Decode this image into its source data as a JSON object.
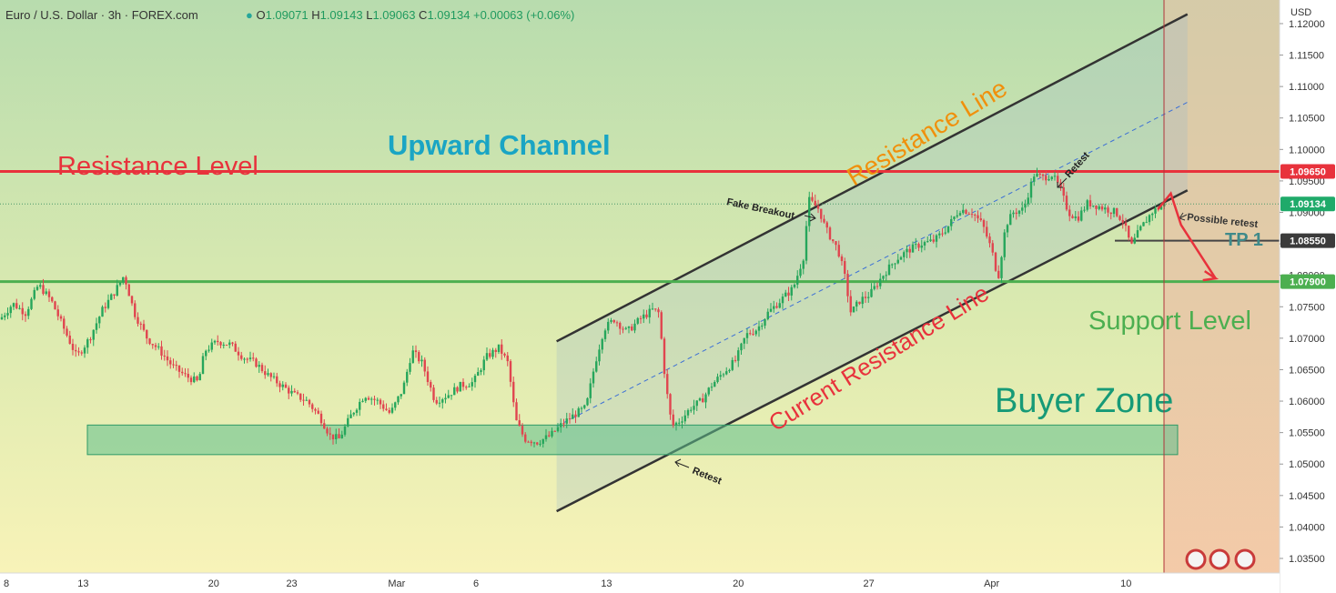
{
  "header": {
    "symbol": "Euro / U.S. Dollar · 3h · FOREX.com",
    "ohlc": [
      {
        "label": "O",
        "value": "1.09071"
      },
      {
        "label": "H",
        "value": "1.09143"
      },
      {
        "label": "L",
        "value": "1.09063"
      },
      {
        "label": "C",
        "value": "1.09134"
      }
    ],
    "change": "+0.00063 (+0.06%)"
  },
  "currency": "USD",
  "colors": {
    "resistance": "#e8323c",
    "support": "#4caf50",
    "title_teal": "#1aa5c4",
    "buyer_zone_text": "#169a77",
    "orange": "#f0900c",
    "last_price": "#1faa6a",
    "dark_label": "#3b3b3b",
    "bull": "#26a65b",
    "bear": "#e0454f"
  },
  "annotations": {
    "upward_channel": "Upward Channel",
    "resistance_level": "Resistance Level",
    "resistance_line": "Resistance Line",
    "current_resistance_line": "Current Resistance Line",
    "buyer_zone": "Buyer Zone",
    "support_level": "Support Level",
    "tp1": "TP 1",
    "fake_breakout": "Fake Breakout",
    "retest_top": "Retest",
    "retest_bottom": "Retest",
    "possible_retest": "Possible retest"
  },
  "chart_data": {
    "type": "candlestick",
    "symbol": "EURUSD",
    "timeframe": "3h",
    "y_axis": {
      "range": [
        1.0325,
        1.1275
      ],
      "ticks": [
        "1.03500",
        "1.04000",
        "1.04500",
        "1.05000",
        "1.05500",
        "1.06000",
        "1.06500",
        "1.07000",
        "1.07500",
        "1.08000",
        "1.08500",
        "1.09000",
        "1.09500",
        "1.10000",
        "1.10500",
        "1.11000",
        "1.11500",
        "1.12000"
      ]
    },
    "x_axis": {
      "ticks": [
        {
          "label": "8",
          "frac": 0.005
        },
        {
          "label": "13",
          "frac": 0.065
        },
        {
          "label": "20",
          "frac": 0.167
        },
        {
          "label": "23",
          "frac": 0.228
        },
        {
          "label": "Mar",
          "frac": 0.31
        },
        {
          "label": "6",
          "frac": 0.372
        },
        {
          "label": "13",
          "frac": 0.474
        },
        {
          "label": "20",
          "frac": 0.577
        },
        {
          "label": "27",
          "frac": 0.679
        },
        {
          "label": "Apr",
          "frac": 0.775
        },
        {
          "label": "10",
          "frac": 0.88
        }
      ]
    },
    "price_labels": [
      {
        "value": "1.09650",
        "kind": "resistance"
      },
      {
        "value": "1.09134",
        "kind": "last"
      },
      {
        "value": "1.08550",
        "kind": "tp"
      },
      {
        "value": "1.07900",
        "kind": "support"
      }
    ],
    "levels": {
      "resistance": 1.0965,
      "last_price": 1.09134,
      "tp1": 1.0855,
      "support": 1.079
    },
    "buyer_zone": {
      "low": 1.0515,
      "high": 1.0562
    },
    "channel": {
      "x_start": 0.435,
      "x_end": 0.928,
      "upper": [
        1.0695,
        1.1215
      ],
      "lower": [
        1.0425,
        1.0935
      ],
      "mid": [
        1.056,
        1.1075
      ]
    },
    "series": [
      {
        "name": "price",
        "points": [
          [
            0.0,
            1.073
          ],
          [
            0.01,
            1.0755
          ],
          [
            0.02,
            1.074
          ],
          [
            0.03,
            1.0785
          ],
          [
            0.04,
            1.076
          ],
          [
            0.05,
            1.0715
          ],
          [
            0.06,
            1.067
          ],
          [
            0.07,
            1.07
          ],
          [
            0.08,
            1.0745
          ],
          [
            0.09,
            1.0775
          ],
          [
            0.097,
            1.08
          ],
          [
            0.105,
            1.074
          ],
          [
            0.115,
            1.07
          ],
          [
            0.125,
            1.068
          ],
          [
            0.135,
            1.0655
          ],
          [
            0.145,
            1.064
          ],
          [
            0.155,
            1.063
          ],
          [
            0.16,
            1.068
          ],
          [
            0.17,
            1.0695
          ],
          [
            0.18,
            1.069
          ],
          [
            0.19,
            1.067
          ],
          [
            0.2,
            1.066
          ],
          [
            0.21,
            1.064
          ],
          [
            0.22,
            1.0625
          ],
          [
            0.23,
            1.061
          ],
          [
            0.24,
            1.06
          ],
          [
            0.25,
            1.0575
          ],
          [
            0.258,
            1.0545
          ],
          [
            0.265,
            1.054
          ],
          [
            0.275,
            1.058
          ],
          [
            0.285,
            1.061
          ],
          [
            0.295,
            1.06
          ],
          [
            0.305,
            1.058
          ],
          [
            0.315,
            1.062
          ],
          [
            0.322,
            1.068
          ],
          [
            0.33,
            1.066
          ],
          [
            0.34,
            1.06
          ],
          [
            0.35,
            1.061
          ],
          [
            0.36,
            1.0625
          ],
          [
            0.37,
            1.063
          ],
          [
            0.38,
            1.067
          ],
          [
            0.39,
            1.0685
          ],
          [
            0.397,
            1.066
          ],
          [
            0.403,
            1.057
          ],
          [
            0.41,
            1.054
          ],
          [
            0.42,
            1.0535
          ],
          [
            0.43,
            1.0545
          ],
          [
            0.44,
            1.0565
          ],
          [
            0.45,
            1.058
          ],
          [
            0.458,
            1.059
          ],
          [
            0.465,
            1.066
          ],
          [
            0.472,
            1.0715
          ],
          [
            0.48,
            1.073
          ],
          [
            0.49,
            1.071
          ],
          [
            0.5,
            1.073
          ],
          [
            0.51,
            1.0745
          ],
          [
            0.515,
            1.074
          ],
          [
            0.52,
            1.063
          ],
          [
            0.525,
            1.056
          ],
          [
            0.532,
            1.057
          ],
          [
            0.54,
            1.059
          ],
          [
            0.548,
            1.06
          ],
          [
            0.556,
            1.0625
          ],
          [
            0.565,
            1.0645
          ],
          [
            0.575,
            1.0665
          ],
          [
            0.583,
            1.0705
          ],
          [
            0.592,
            1.0715
          ],
          [
            0.6,
            1.074
          ],
          [
            0.61,
            1.076
          ],
          [
            0.62,
            1.078
          ],
          [
            0.628,
            1.083
          ],
          [
            0.632,
            1.092
          ],
          [
            0.64,
            1.0905
          ],
          [
            0.645,
            1.0875
          ],
          [
            0.655,
            1.084
          ],
          [
            0.66,
            1.08
          ],
          [
            0.665,
            1.074
          ],
          [
            0.672,
            1.076
          ],
          [
            0.68,
            1.077
          ],
          [
            0.69,
            1.08
          ],
          [
            0.7,
            1.0825
          ],
          [
            0.71,
            1.084
          ],
          [
            0.72,
            1.085
          ],
          [
            0.73,
            1.0855
          ],
          [
            0.74,
            1.0875
          ],
          [
            0.75,
            1.0905
          ],
          [
            0.76,
            1.09
          ],
          [
            0.768,
            1.088
          ],
          [
            0.775,
            1.084
          ],
          [
            0.78,
            1.0795
          ],
          [
            0.786,
            1.088
          ],
          [
            0.792,
            1.09
          ],
          [
            0.8,
            1.0905
          ],
          [
            0.808,
            1.096
          ],
          [
            0.815,
            1.0955
          ],
          [
            0.822,
            1.096
          ],
          [
            0.828,
            1.094
          ],
          [
            0.835,
            1.09
          ],
          [
            0.842,
            1.089
          ],
          [
            0.85,
            1.0915
          ],
          [
            0.858,
            1.091
          ],
          [
            0.865,
            1.0905
          ],
          [
            0.872,
            1.09
          ],
          [
            0.878,
            1.0885
          ],
          [
            0.884,
            1.0845
          ],
          [
            0.89,
            1.087
          ],
          [
            0.9,
            1.09
          ],
          [
            0.91,
            1.0913
          ]
        ]
      }
    ],
    "projection": [
      [
        0.915,
        1.0925
      ],
      [
        0.93,
        1.088
      ],
      [
        0.95,
        1.0795
      ]
    ]
  }
}
